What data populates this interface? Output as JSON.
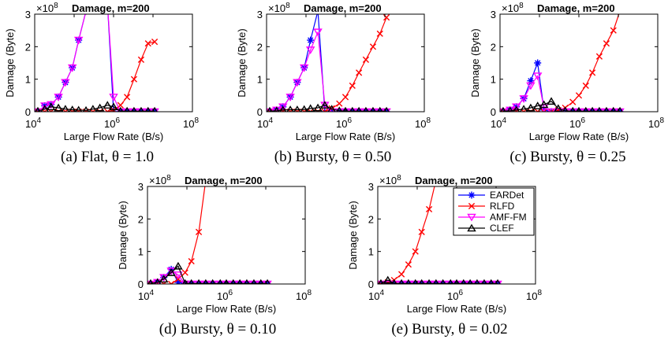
{
  "figure": {
    "series_styles": [
      {
        "name": "EARDet",
        "color": "#0000ff",
        "marker": "asterisk"
      },
      {
        "name": "RLFD",
        "color": "#ff0000",
        "marker": "x"
      },
      {
        "name": "AMF-FM",
        "color": "#ff00ff",
        "marker": "triangle-down"
      },
      {
        "name": "CLEF",
        "color": "#000000",
        "marker": "triangle-up"
      }
    ]
  },
  "chart_data": [
    {
      "type": "line",
      "title": "Damage, m=200",
      "exponent_label": "×10",
      "exponent_power": "8",
      "xlabel": "Large Flow Rate (B/s)",
      "ylabel": "Damage (Byte)",
      "xscale": "log",
      "xlim": [
        10000,
        100000000
      ],
      "ylim": [
        0,
        3
      ],
      "yticks": [
        0,
        1,
        2,
        3
      ],
      "xticks": [
        {
          "base": "10",
          "exp": "4"
        },
        {
          "base": "10",
          "exp": "6"
        },
        {
          "base": "10",
          "exp": "8"
        }
      ],
      "caption": "(a) Flat, θ = 1.0",
      "series": [
        {
          "name": "EARDet",
          "x": [
            12000,
            18000,
            26000,
            40000,
            60000,
            90000,
            130000,
            200000,
            300000,
            450000,
            700000,
            1000000,
            1500000,
            2200000,
            3300000,
            5000000,
            7500000,
            11000000
          ],
          "y": [
            0,
            0.18,
            0.22,
            0.45,
            0.9,
            1.35,
            2.2,
            3.1,
            3.3,
            3.3,
            3.3,
            0,
            0,
            0,
            0,
            0,
            0,
            0
          ]
        },
        {
          "name": "RLFD",
          "x": [
            12000,
            18000,
            26000,
            40000,
            60000,
            90000,
            130000,
            200000,
            300000,
            450000,
            700000,
            1000000,
            1500000,
            2200000,
            3300000,
            5000000,
            7500000,
            11000000
          ],
          "y": [
            0,
            0,
            0,
            0,
            0,
            0,
            0,
            0,
            0,
            0,
            0,
            0.05,
            0.2,
            0.45,
            1.0,
            1.6,
            2.1,
            2.15
          ]
        },
        {
          "name": "AMF-FM",
          "x": [
            12000,
            18000,
            26000,
            40000,
            60000,
            90000,
            130000,
            200000,
            300000,
            450000,
            700000,
            1000000,
            1500000,
            2200000,
            3300000,
            5000000,
            7500000,
            11000000
          ],
          "y": [
            0,
            0.18,
            0.22,
            0.45,
            0.9,
            1.35,
            2.2,
            3.1,
            3.3,
            3.3,
            3.3,
            0.45,
            0,
            0,
            0,
            0,
            0,
            0
          ]
        },
        {
          "name": "CLEF",
          "x": [
            12000,
            18000,
            26000,
            40000,
            60000,
            90000,
            130000,
            200000,
            300000,
            450000,
            700000,
            1000000,
            1500000,
            2200000,
            3300000,
            5000000,
            7500000,
            11000000
          ],
          "y": [
            0.02,
            0.08,
            0.15,
            0.12,
            0.08,
            0.06,
            0.05,
            0.04,
            0.08,
            0.12,
            0.2,
            0.15,
            0.02,
            0.02,
            0.02,
            0.02,
            0.02,
            0.02
          ]
        }
      ]
    },
    {
      "type": "line",
      "title": "Damage, m=200",
      "exponent_label": "×10",
      "exponent_power": "8",
      "xlabel": "Large Flow Rate (B/s)",
      "ylabel": "Damage (Byte)",
      "xscale": "log",
      "xlim": [
        10000,
        100000000
      ],
      "ylim": [
        0,
        3
      ],
      "yticks": [
        0,
        1,
        2,
        3
      ],
      "xticks": [
        {
          "base": "10",
          "exp": "4"
        },
        {
          "base": "10",
          "exp": "6"
        },
        {
          "base": "10",
          "exp": "8"
        }
      ],
      "caption": "(b) Bursty, θ = 0.50",
      "series": [
        {
          "name": "EARDet",
          "x": [
            12000,
            18000,
            26000,
            40000,
            60000,
            90000,
            130000,
            200000,
            300000,
            450000,
            700000,
            1000000,
            1500000,
            2200000,
            3300000,
            5000000,
            7500000,
            11000000
          ],
          "y": [
            0,
            0.05,
            0.15,
            0.45,
            0.9,
            1.35,
            2.2,
            3.1,
            0,
            0,
            0,
            0,
            0,
            0,
            0,
            0,
            0,
            0
          ]
        },
        {
          "name": "RLFD",
          "x": [
            12000,
            18000,
            26000,
            40000,
            60000,
            90000,
            130000,
            200000,
            300000,
            450000,
            700000,
            1000000,
            1500000,
            2200000,
            3300000,
            5000000,
            7500000,
            11000000
          ],
          "y": [
            0,
            0,
            0,
            0,
            0,
            0,
            0,
            0,
            0,
            0.1,
            0.25,
            0.45,
            0.8,
            1.2,
            1.6,
            2.0,
            2.4,
            2.9
          ]
        },
        {
          "name": "AMF-FM",
          "x": [
            12000,
            18000,
            26000,
            40000,
            60000,
            90000,
            130000,
            200000,
            300000,
            450000,
            700000,
            1000000,
            1500000,
            2200000,
            3300000,
            5000000,
            7500000,
            11000000
          ],
          "y": [
            0,
            0.05,
            0.15,
            0.45,
            0.9,
            1.35,
            1.9,
            2.45,
            0.2,
            0,
            0,
            0,
            0,
            0,
            0,
            0,
            0,
            0
          ]
        },
        {
          "name": "CLEF",
          "x": [
            12000,
            18000,
            26000,
            40000,
            60000,
            90000,
            130000,
            200000,
            300000,
            450000,
            700000,
            1000000,
            1500000,
            2200000,
            3300000,
            5000000,
            7500000,
            11000000
          ],
          "y": [
            0.02,
            0.03,
            0.05,
            0.06,
            0.06,
            0.07,
            0.1,
            0.12,
            0.2,
            0.08,
            0.03,
            0.02,
            0.02,
            0.02,
            0.02,
            0.02,
            0.02,
            0.02
          ]
        }
      ]
    },
    {
      "type": "line",
      "title": "Damage, m=200",
      "exponent_label": "×10",
      "exponent_power": "8",
      "xlabel": "Large Flow Rate (B/s)",
      "ylabel": "Damage (Byte)",
      "xscale": "log",
      "xlim": [
        10000,
        100000000
      ],
      "ylim": [
        0,
        3
      ],
      "yticks": [
        0,
        1,
        2,
        3
      ],
      "xticks": [
        {
          "base": "10",
          "exp": "4"
        },
        {
          "base": "10",
          "exp": "6"
        },
        {
          "base": "10",
          "exp": "8"
        }
      ],
      "caption": "(c) Bursty, θ = 0.25",
      "series": [
        {
          "name": "EARDet",
          "x": [
            12000,
            18000,
            26000,
            40000,
            60000,
            90000,
            130000,
            200000,
            300000,
            450000,
            700000,
            1000000,
            1500000,
            2200000,
            3300000,
            5000000,
            7500000,
            11000000
          ],
          "y": [
            0,
            0.05,
            0.15,
            0.4,
            0.95,
            1.5,
            0.05,
            0,
            0,
            0,
            0,
            0,
            0,
            0,
            0,
            0,
            0,
            0
          ]
        },
        {
          "name": "RLFD",
          "x": [
            12000,
            18000,
            26000,
            40000,
            60000,
            90000,
            130000,
            200000,
            300000,
            450000,
            700000,
            1000000,
            1500000,
            2200000,
            3300000,
            5000000,
            7500000,
            11000000
          ],
          "y": [
            0,
            0,
            0,
            0,
            0,
            0,
            0,
            0,
            0.05,
            0.12,
            0.3,
            0.5,
            0.8,
            1.2,
            1.7,
            2.1,
            2.5,
            3.1
          ]
        },
        {
          "name": "AMF-FM",
          "x": [
            12000,
            18000,
            26000,
            40000,
            60000,
            90000,
            130000,
            200000,
            300000,
            450000,
            700000,
            1000000,
            1500000,
            2200000,
            3300000,
            5000000,
            7500000,
            11000000
          ],
          "y": [
            0,
            0.05,
            0.15,
            0.4,
            0.8,
            1.1,
            0.12,
            0,
            0,
            0,
            0,
            0,
            0,
            0,
            0,
            0,
            0,
            0
          ]
        },
        {
          "name": "CLEF",
          "x": [
            12000,
            18000,
            26000,
            40000,
            60000,
            90000,
            130000,
            200000,
            300000,
            450000,
            700000,
            1000000,
            1500000,
            2200000,
            3300000,
            5000000,
            7500000,
            11000000
          ],
          "y": [
            0.02,
            0.03,
            0.05,
            0.08,
            0.12,
            0.18,
            0.22,
            0.32,
            0.1,
            0.03,
            0.02,
            0.02,
            0.02,
            0.02,
            0.02,
            0.02,
            0.02,
            0.02
          ]
        }
      ]
    },
    {
      "type": "line",
      "title": "Damage, m=200",
      "exponent_label": "×10",
      "exponent_power": "8",
      "xlabel": "Large Flow Rate (B/s)",
      "ylabel": "Damage (Byte)",
      "xscale": "log",
      "xlim": [
        10000,
        100000000
      ],
      "ylim": [
        0,
        3
      ],
      "yticks": [
        0,
        1,
        2,
        3
      ],
      "xticks": [
        {
          "base": "10",
          "exp": "4"
        },
        {
          "base": "10",
          "exp": "6"
        },
        {
          "base": "10",
          "exp": "8"
        }
      ],
      "caption": "(d) Bursty, θ = 0.10",
      "series": [
        {
          "name": "EARDet",
          "x": [
            12000,
            18000,
            26000,
            40000,
            60000,
            90000,
            130000,
            200000,
            300000,
            450000,
            700000,
            1000000,
            1500000,
            2200000,
            3300000,
            5000000,
            7500000,
            11000000
          ],
          "y": [
            0,
            0.05,
            0.2,
            0.45,
            0.05,
            0,
            0,
            0,
            0,
            0,
            0,
            0,
            0,
            0,
            0,
            0,
            0,
            0
          ]
        },
        {
          "name": "RLFD",
          "x": [
            12000,
            18000,
            26000,
            40000,
            60000,
            90000,
            130000,
            200000,
            300000,
            450000,
            700000,
            1000000,
            1500000,
            2200000,
            3300000,
            5000000,
            7500000,
            11000000
          ],
          "y": [
            0,
            0,
            0,
            0,
            0.15,
            0.35,
            0.7,
            1.6,
            3.2,
            3.3,
            3.3,
            3.3,
            3.3,
            3.3,
            3.3,
            3.3,
            3.3,
            3.3
          ]
        },
        {
          "name": "AMF-FM",
          "x": [
            12000,
            18000,
            26000,
            40000,
            60000,
            90000,
            130000,
            200000,
            300000,
            450000,
            700000,
            1000000,
            1500000,
            2200000,
            3300000,
            5000000,
            7500000,
            11000000
          ],
          "y": [
            0,
            0.05,
            0.2,
            0.4,
            0.28,
            0,
            0,
            0,
            0,
            0,
            0,
            0,
            0,
            0,
            0,
            0,
            0,
            0
          ]
        },
        {
          "name": "CLEF",
          "x": [
            12000,
            18000,
            26000,
            40000,
            60000,
            90000,
            130000,
            200000,
            300000,
            450000,
            700000,
            1000000,
            1500000,
            2200000,
            3300000,
            5000000,
            7500000,
            11000000
          ],
          "y": [
            0.02,
            0.05,
            0.15,
            0.35,
            0.55,
            0.02,
            0.02,
            0.02,
            0.02,
            0.02,
            0.02,
            0.02,
            0.02,
            0.02,
            0.02,
            0.02,
            0.02,
            0.02
          ]
        }
      ]
    },
    {
      "type": "line",
      "title": "Damage, m=200",
      "exponent_label": "×10",
      "exponent_power": "8",
      "xlabel": "Large Flow Rate (B/s)",
      "ylabel": "Damage (Byte)",
      "xscale": "log",
      "xlim": [
        10000,
        100000000
      ],
      "ylim": [
        0,
        3
      ],
      "yticks": [
        0,
        1,
        2,
        3
      ],
      "xticks": [
        {
          "base": "10",
          "exp": "4"
        },
        {
          "base": "10",
          "exp": "6"
        },
        {
          "base": "10",
          "exp": "8"
        }
      ],
      "caption": "(e) Bursty, θ = 0.02",
      "legend": {
        "position": "top-right",
        "entries": [
          "EARDet",
          "RLFD",
          "AMF-FM",
          "CLEF"
        ]
      },
      "series": [
        {
          "name": "EARDet",
          "x": [
            12000,
            18000,
            26000,
            40000,
            60000,
            90000,
            130000,
            200000,
            300000,
            450000,
            700000,
            1000000,
            1500000,
            2200000,
            3300000,
            5000000,
            7500000,
            11000000
          ],
          "y": [
            0,
            0,
            0,
            0,
            0,
            0,
            0,
            0,
            0,
            0,
            0,
            0,
            0,
            0,
            0,
            0,
            0,
            0
          ]
        },
        {
          "name": "RLFD",
          "x": [
            12000,
            18000,
            26000,
            40000,
            60000,
            90000,
            130000,
            200000,
            300000,
            450000,
            700000,
            1000000,
            1500000,
            2200000,
            3300000,
            5000000,
            7500000,
            11000000
          ],
          "y": [
            0,
            0.05,
            0.12,
            0.3,
            0.6,
            1.0,
            1.6,
            2.3,
            3.2,
            3.3,
            3.3,
            3.3,
            3.3,
            3.3,
            3.3,
            3.3,
            3.3,
            3.3
          ]
        },
        {
          "name": "AMF-FM",
          "x": [
            12000,
            18000,
            26000,
            40000,
            60000,
            90000,
            130000,
            200000,
            300000,
            450000,
            700000,
            1000000,
            1500000,
            2200000,
            3300000,
            5000000,
            7500000,
            11000000
          ],
          "y": [
            0,
            0,
            0,
            0,
            0,
            0,
            0,
            0,
            0,
            0,
            0,
            0,
            0,
            0,
            0,
            0,
            0,
            0
          ]
        },
        {
          "name": "CLEF",
          "x": [
            12000,
            18000,
            26000,
            40000,
            60000,
            90000,
            130000,
            200000,
            300000,
            450000,
            700000,
            1000000,
            1500000,
            2200000,
            3300000,
            5000000,
            7500000,
            11000000
          ],
          "y": [
            0.02,
            0.12,
            0.02,
            0.02,
            0.02,
            0.02,
            0.02,
            0.02,
            0.02,
            0.02,
            0.02,
            0.02,
            0.02,
            0.02,
            0.02,
            0.02,
            0.02,
            0.02
          ]
        }
      ]
    }
  ]
}
